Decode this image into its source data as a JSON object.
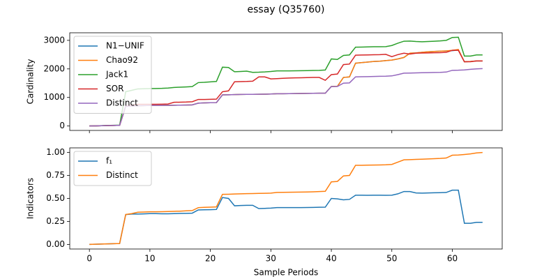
{
  "title": "essay (Q35760)",
  "chart_data": [
    {
      "type": "line",
      "ylabel": "Cardinality",
      "legend": "upper left",
      "x": [
        0,
        1,
        2,
        3,
        4,
        5,
        6,
        7,
        8,
        9,
        10,
        11,
        12,
        13,
        14,
        15,
        16,
        17,
        18,
        19,
        20,
        21,
        22,
        23,
        24,
        25,
        26,
        27,
        28,
        29,
        30,
        31,
        32,
        33,
        34,
        35,
        36,
        37,
        38,
        39,
        40,
        41,
        42,
        43,
        44,
        45,
        46,
        47,
        48,
        49,
        50,
        51,
        52,
        53,
        54,
        55,
        56,
        57,
        58,
        59,
        60,
        61,
        62,
        63,
        64,
        65
      ],
      "xlim": [
        -3.25,
        68.25
      ],
      "xticks": [
        0,
        10,
        20,
        30,
        40,
        50,
        60
      ],
      "ylim": [
        -155,
        3265
      ],
      "yticks": [
        0,
        1000,
        2000,
        3000
      ],
      "series": [
        {
          "name": "N1−UNIF",
          "color": "#1f77b4",
          "values": [
            0,
            5,
            10,
            15,
            20,
            25,
            690,
            700,
            710,
            715,
            720,
            720,
            722,
            725,
            728,
            730,
            735,
            740,
            800,
            810,
            815,
            820,
            1090,
            1095,
            1100,
            1105,
            1108,
            1110,
            1112,
            1115,
            1120,
            1130,
            1132,
            1135,
            1137,
            1140,
            1142,
            1145,
            1148,
            1150,
            1385,
            1390,
            1700,
            1720,
            2200,
            2220,
            2240,
            2260,
            2270,
            2290,
            2310,
            2350,
            2400,
            2550,
            2560,
            2580,
            2600,
            2610,
            2620,
            2630,
            2640,
            2660,
            2250,
            2260,
            2280,
            2280
          ]
        },
        {
          "name": "Chao92",
          "color": "#ff7f0e",
          "values": [
            0,
            5,
            10,
            15,
            20,
            25,
            690,
            700,
            710,
            715,
            720,
            720,
            722,
            725,
            728,
            730,
            735,
            740,
            800,
            810,
            815,
            820,
            1090,
            1095,
            1100,
            1105,
            1108,
            1110,
            1112,
            1115,
            1120,
            1130,
            1132,
            1135,
            1137,
            1140,
            1142,
            1145,
            1148,
            1150,
            1385,
            1390,
            1700,
            1720,
            2200,
            2220,
            2240,
            2260,
            2270,
            2290,
            2310,
            2350,
            2400,
            2550,
            2560,
            2580,
            2600,
            2610,
            2620,
            2630,
            2650,
            2680,
            2250,
            2260,
            2280,
            2280
          ]
        },
        {
          "name": "Jack1",
          "color": "#2ca02c",
          "values": [
            0,
            5,
            12,
            18,
            24,
            30,
            1200,
            1250,
            1300,
            1305,
            1310,
            1315,
            1320,
            1330,
            1350,
            1360,
            1370,
            1380,
            1520,
            1530,
            1545,
            1560,
            2060,
            2050,
            1900,
            1910,
            1920,
            1880,
            1885,
            1895,
            1910,
            1930,
            1930,
            1932,
            1935,
            1938,
            1940,
            1945,
            1950,
            1960,
            2350,
            2330,
            2470,
            2490,
            2760,
            2765,
            2770,
            2775,
            2775,
            2780,
            2820,
            2900,
            2970,
            2975,
            2960,
            2950,
            2960,
            2970,
            2980,
            3000,
            3100,
            3110,
            2450,
            2450,
            2490,
            2490
          ]
        },
        {
          "name": "SOR",
          "color": "#d62728",
          "values": [
            0,
            5,
            10,
            15,
            20,
            25,
            700,
            730,
            760,
            760,
            760,
            762,
            765,
            770,
            830,
            835,
            840,
            850,
            930,
            930,
            935,
            940,
            1200,
            1230,
            1550,
            1555,
            1560,
            1570,
            1720,
            1720,
            1650,
            1660,
            1670,
            1680,
            1685,
            1690,
            1695,
            1700,
            1700,
            1600,
            1800,
            1820,
            2150,
            2170,
            2480,
            2485,
            2490,
            2495,
            2500,
            2510,
            2430,
            2500,
            2550,
            2520,
            2550,
            2555,
            2560,
            2565,
            2570,
            2580,
            2650,
            2650,
            2250,
            2250,
            2280,
            2280
          ]
        },
        {
          "name": "Distinct",
          "color": "#9467bd",
          "values": [
            0,
            5,
            10,
            15,
            20,
            25,
            690,
            700,
            710,
            715,
            720,
            720,
            722,
            725,
            728,
            730,
            735,
            740,
            800,
            810,
            815,
            820,
            1090,
            1095,
            1100,
            1105,
            1108,
            1110,
            1112,
            1115,
            1120,
            1130,
            1132,
            1135,
            1137,
            1140,
            1142,
            1145,
            1148,
            1150,
            1380,
            1385,
            1500,
            1510,
            1720,
            1725,
            1730,
            1735,
            1740,
            1745,
            1755,
            1800,
            1850,
            1855,
            1860,
            1865,
            1870,
            1875,
            1880,
            1890,
            1950,
            1955,
            1965,
            1985,
            2000,
            2010
          ]
        }
      ]
    },
    {
      "type": "line",
      "ylabel": "Indicators",
      "xlabel": "Sample Periods",
      "legend": "upper left",
      "x": [
        0,
        1,
        2,
        3,
        4,
        5,
        6,
        7,
        8,
        9,
        10,
        11,
        12,
        13,
        14,
        15,
        16,
        17,
        18,
        19,
        20,
        21,
        22,
        23,
        24,
        25,
        26,
        27,
        28,
        29,
        30,
        31,
        32,
        33,
        34,
        35,
        36,
        37,
        38,
        39,
        40,
        41,
        42,
        43,
        44,
        45,
        46,
        47,
        48,
        49,
        50,
        51,
        52,
        53,
        54,
        55,
        56,
        57,
        58,
        59,
        60,
        61,
        62,
        63,
        64,
        65
      ],
      "xlim": [
        -3.25,
        68.25
      ],
      "xticks": [
        0,
        10,
        20,
        30,
        40,
        50,
        60
      ],
      "ylim": [
        -0.05,
        1.05
      ],
      "yticks": [
        {
          "value": 0,
          "label": "0.00"
        },
        0.25,
        {
          "value": 0.5,
          "label": "0.50"
        },
        0.75,
        {
          "value": 1,
          "label": "1.00"
        }
      ],
      "series": [
        {
          "name": "f₁",
          "color": "#1f77b4",
          "values": [
            0,
            0.002,
            0.004,
            0.006,
            0.008,
            0.01,
            0.325,
            0.33,
            0.33,
            0.332,
            0.335,
            0.335,
            0.333,
            0.333,
            0.335,
            0.337,
            0.338,
            0.34,
            0.375,
            0.377,
            0.378,
            0.38,
            0.51,
            0.5,
            0.42,
            0.423,
            0.425,
            0.425,
            0.39,
            0.392,
            0.395,
            0.4,
            0.4,
            0.4,
            0.4,
            0.4,
            0.401,
            0.402,
            0.404,
            0.405,
            0.5,
            0.495,
            0.485,
            0.49,
            0.535,
            0.535,
            0.534,
            0.535,
            0.535,
            0.534,
            0.535,
            0.55,
            0.575,
            0.575,
            0.56,
            0.558,
            0.56,
            0.562,
            0.563,
            0.565,
            0.59,
            0.59,
            0.23,
            0.23,
            0.24,
            0.24
          ]
        },
        {
          "name": "Distinct",
          "color": "#ff7f0e",
          "values": [
            0,
            0.002,
            0.004,
            0.006,
            0.008,
            0.01,
            0.325,
            0.335,
            0.35,
            0.352,
            0.355,
            0.355,
            0.356,
            0.358,
            0.36,
            0.362,
            0.365,
            0.368,
            0.4,
            0.403,
            0.405,
            0.408,
            0.545,
            0.546,
            0.548,
            0.55,
            0.552,
            0.553,
            0.555,
            0.556,
            0.558,
            0.565,
            0.566,
            0.567,
            0.568,
            0.569,
            0.57,
            0.572,
            0.575,
            0.578,
            0.68,
            0.685,
            0.745,
            0.75,
            0.86,
            0.86,
            0.862,
            0.863,
            0.864,
            0.866,
            0.87,
            0.895,
            0.92,
            0.922,
            0.925,
            0.927,
            0.93,
            0.932,
            0.935,
            0.94,
            0.97,
            0.972,
            0.978,
            0.985,
            0.995,
            1.0
          ]
        }
      ]
    }
  ]
}
